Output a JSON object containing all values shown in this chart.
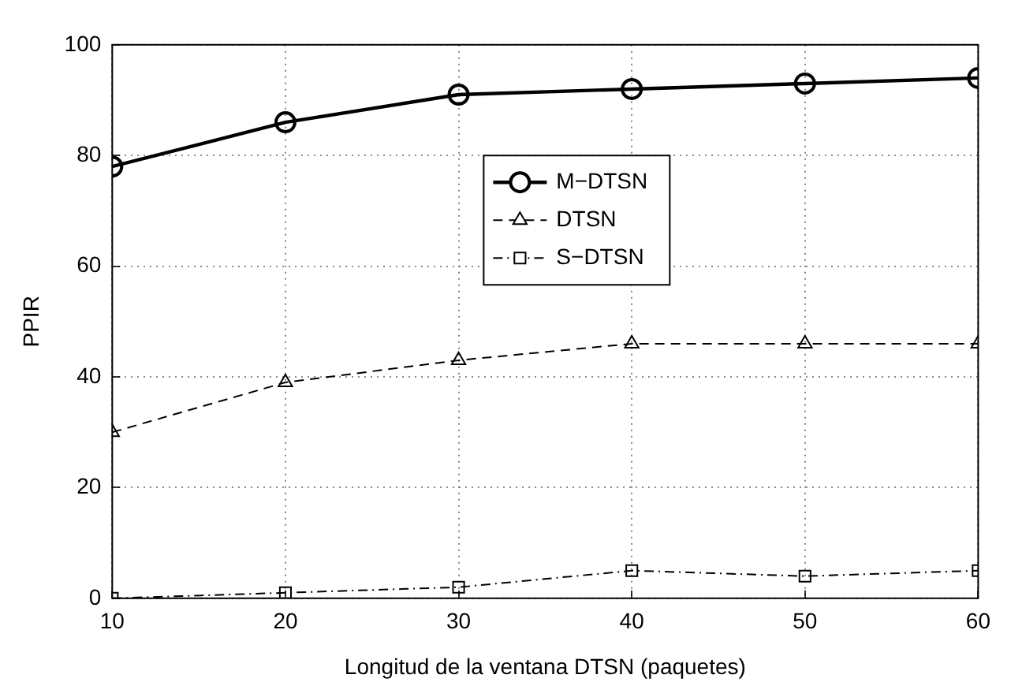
{
  "chart_data": {
    "type": "line",
    "xlabel": "Longitud de la ventana DTSN (paquetes)",
    "ylabel": "PPIR",
    "x": [
      10,
      20,
      30,
      40,
      50,
      60
    ],
    "series": [
      {
        "name": "M−DTSN",
        "color": "#000000",
        "values": [
          78,
          86,
          91,
          92,
          93,
          94
        ],
        "line_style": "solid",
        "marker": "circle"
      },
      {
        "name": "DTSN",
        "color": "#000000",
        "values": [
          30,
          39,
          43,
          46,
          46,
          46
        ],
        "line_style": "dashed",
        "marker": "triangle"
      },
      {
        "name": "S−DTSN",
        "color": "#000000",
        "values": [
          0,
          1,
          2,
          5,
          4,
          5
        ],
        "line_style": "dotted",
        "marker": "square"
      }
    ],
    "xlim": [
      10,
      60
    ],
    "xticks": [
      10,
      20,
      30,
      40,
      50,
      60
    ],
    "ylim": [
      0,
      100
    ],
    "yticks": [
      0,
      20,
      40,
      60,
      80,
      100
    ],
    "grid": true,
    "legend": "top"
  }
}
